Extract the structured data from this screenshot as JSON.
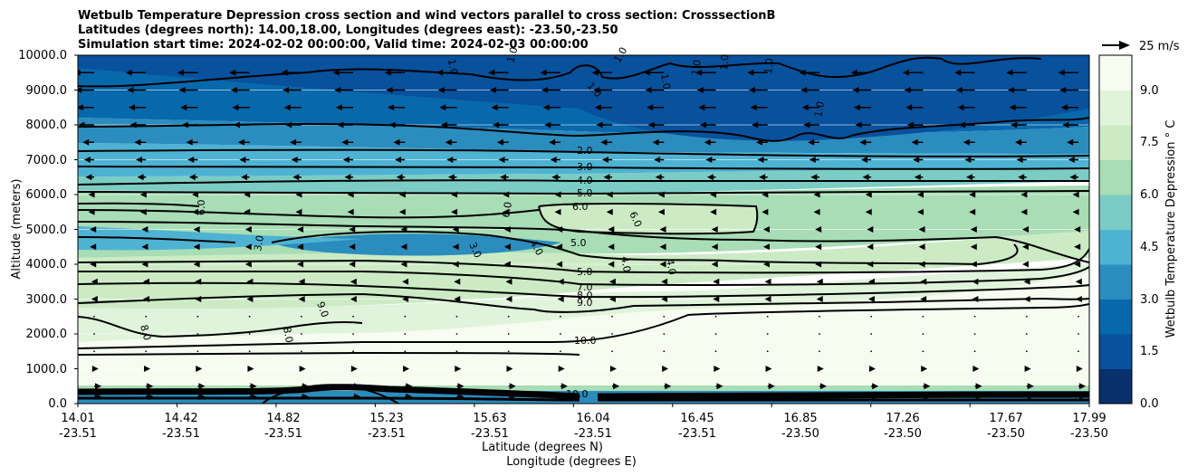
{
  "chart_data": {
    "type": "contour-cross-section",
    "title_lines": [
      "Wetbulb Temperature Depression cross section and wind vectors parallel to cross section: CrosssectionB",
      "Latitudes (degrees north): 14.00,18.00, Longitudes (degrees east): -23.50,-23.50",
      "Simulation start time: 2024-02-02 00:00:00, Valid time: 2024-02-03 00:00:00"
    ],
    "ylabel": "Altitude (meters)",
    "xlabel_lat": "Latitude (degrees N)",
    "xlabel_lon": "Longitude (degrees E)",
    "ylim": [
      0,
      10000
    ],
    "y_ticks": [
      "0.0",
      "1000.0",
      "2000.0",
      "3000.0",
      "4000.0",
      "5000.0",
      "6000.0",
      "7000.0",
      "8000.0",
      "9000.0",
      "10000.0"
    ],
    "x_ticks": [
      {
        "lat": "14.01",
        "lon": "-23.51"
      },
      {
        "lat": "14.42",
        "lon": "-23.51"
      },
      {
        "lat": "14.82",
        "lon": "-23.51"
      },
      {
        "lat": "15.23",
        "lon": "-23.51"
      },
      {
        "lat": "15.63",
        "lon": "-23.51"
      },
      {
        "lat": "16.04",
        "lon": "-23.51"
      },
      {
        "lat": "16.45",
        "lon": "-23.51"
      },
      {
        "lat": "16.85",
        "lon": "-23.50"
      },
      {
        "lat": "17.26",
        "lon": "-23.50"
      },
      {
        "lat": "17.67",
        "lon": "-23.50"
      },
      {
        "lat": "17.99",
        "lon": "-23.50"
      }
    ],
    "colorbar": {
      "label": "Wetbulb Temperature Depression ° C",
      "range": [
        0,
        10
      ],
      "ticks": [
        "0.0",
        "1.5",
        "3.0",
        "4.5",
        "6.0",
        "7.5",
        "9.0"
      ],
      "colors": [
        "#08306b",
        "#08519c",
        "#0868ac",
        "#2b8cbe",
        "#4eb3d3",
        "#7bccc4",
        "#a8ddb5",
        "#ccebc5",
        "#e0f3db",
        "#f7fcf0"
      ]
    },
    "contour_labels": [
      "1.0",
      "2.0",
      "3.0",
      "4.0",
      "5.0",
      "6.0",
      "7.0",
      "8.0",
      "9.0",
      "10.0"
    ],
    "layers": [
      {
        "altitude_m": 9000,
        "value": 0.6
      },
      {
        "altitude_m": 7700,
        "value": 1.5
      },
      {
        "altitude_m": 6800,
        "value": 3.0
      },
      {
        "altitude_m": 6000,
        "value": 5.0
      },
      {
        "altitude_m": 5000,
        "value": 6.0
      },
      {
        "altitude_m": 4400,
        "value": 4.0
      },
      {
        "altitude_m": 3500,
        "value": 7.0
      },
      {
        "altitude_m": 2800,
        "value": 8.5
      },
      {
        "altitude_m": 2000,
        "value": 9.5
      },
      {
        "altitude_m": 1000,
        "value": 10.0
      }
    ],
    "wind_reference": "25 m/s",
    "wind_rows": [
      {
        "altitude_m": 9500,
        "u": -14
      },
      {
        "altitude_m": 9000,
        "u": -13
      },
      {
        "altitude_m": 8500,
        "u": -12
      },
      {
        "altitude_m": 8000,
        "u": -11
      },
      {
        "altitude_m": 7500,
        "u": -8
      },
      {
        "altitude_m": 7000,
        "u": -7
      },
      {
        "altitude_m": 6500,
        "u": -6
      },
      {
        "altitude_m": 6000,
        "u": -4
      },
      {
        "altitude_m": 5500,
        "u": -4
      },
      {
        "altitude_m": 5000,
        "u": -3
      },
      {
        "altitude_m": 4500,
        "u": -3
      },
      {
        "altitude_m": 4000,
        "u": -3
      },
      {
        "altitude_m": 3500,
        "u": -2
      },
      {
        "altitude_m": 3000,
        "u": -2
      },
      {
        "altitude_m": 2500,
        "u": -1
      },
      {
        "altitude_m": 2000,
        "u": -1
      },
      {
        "altitude_m": 1500,
        "u": 1
      },
      {
        "altitude_m": 1000,
        "u": 3
      },
      {
        "altitude_m": 500,
        "u": 5
      },
      {
        "altitude_m": 200,
        "u": 5
      }
    ]
  }
}
